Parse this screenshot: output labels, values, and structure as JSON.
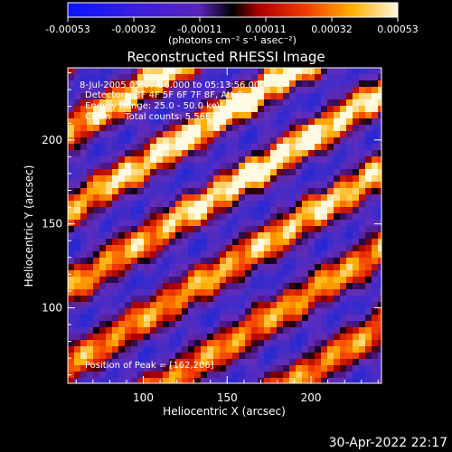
{
  "colorbar": {
    "ticks": [
      "-0.00053",
      "-0.00032",
      "-0.00011",
      "0.00011",
      "0.00032",
      "0.00053"
    ],
    "unit_label": "(photons cm⁻² s⁻¹ asec⁻²)"
  },
  "chart_data": {
    "type": "heatmap",
    "title": "Reconstructed RHESSI Image",
    "xlabel": "Heliocentric X (arcsec)",
    "ylabel": "Heliocentric Y (arcsec)",
    "xlim": [
      55,
      242
    ],
    "ylim": [
      55,
      243
    ],
    "x_ticks": [
      100,
      150,
      200
    ],
    "y_ticks": [
      100,
      150,
      200
    ],
    "value_range": [
      -0.00053,
      0.00053
    ],
    "colormap": "blue-purple-red-yellow-white",
    "peak": [
      162,
      206
    ],
    "annotations": [
      "8-Jul-2005 05:07:56.000 to 05:13:56.000",
      "Detectors: 3F 4F 5F 6F 7F 8F, Att 0",
      "Energy Range: 25.0 - 50.0 keV",
      "Clean     Total counts: 5.56E+03",
      "Position of Peak = [162,206]"
    ]
  },
  "footer": {
    "timestamp": "30-Apr-2022 22:17"
  }
}
